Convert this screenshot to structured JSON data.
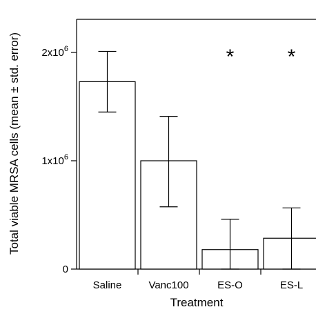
{
  "chart_data": {
    "type": "bar",
    "xlabel": "Treatment",
    "ylabel": "Total viable MRSA cells (mean ± std. error)",
    "categories": [
      "Saline",
      "Vanc100",
      "ES-O",
      "ES-L"
    ],
    "values": [
      1730000,
      1000000,
      180000,
      285000
    ],
    "error_low": [
      1450000,
      575000,
      0,
      0
    ],
    "error_high": [
      2010000,
      1410000,
      460000,
      565000
    ],
    "ylim": [
      0,
      2300000
    ],
    "y_ticks": [
      {
        "value": 0,
        "base": "0",
        "exp": ""
      },
      {
        "value": 1000000,
        "base": "1x10",
        "exp": "6"
      },
      {
        "value": 2000000,
        "base": "2x10",
        "exp": "6"
      }
    ],
    "significance": [
      "",
      "",
      "*",
      "*"
    ],
    "grid": false,
    "legend": "none",
    "bar_fill": "#ffffff",
    "bar_stroke": "#000000"
  }
}
